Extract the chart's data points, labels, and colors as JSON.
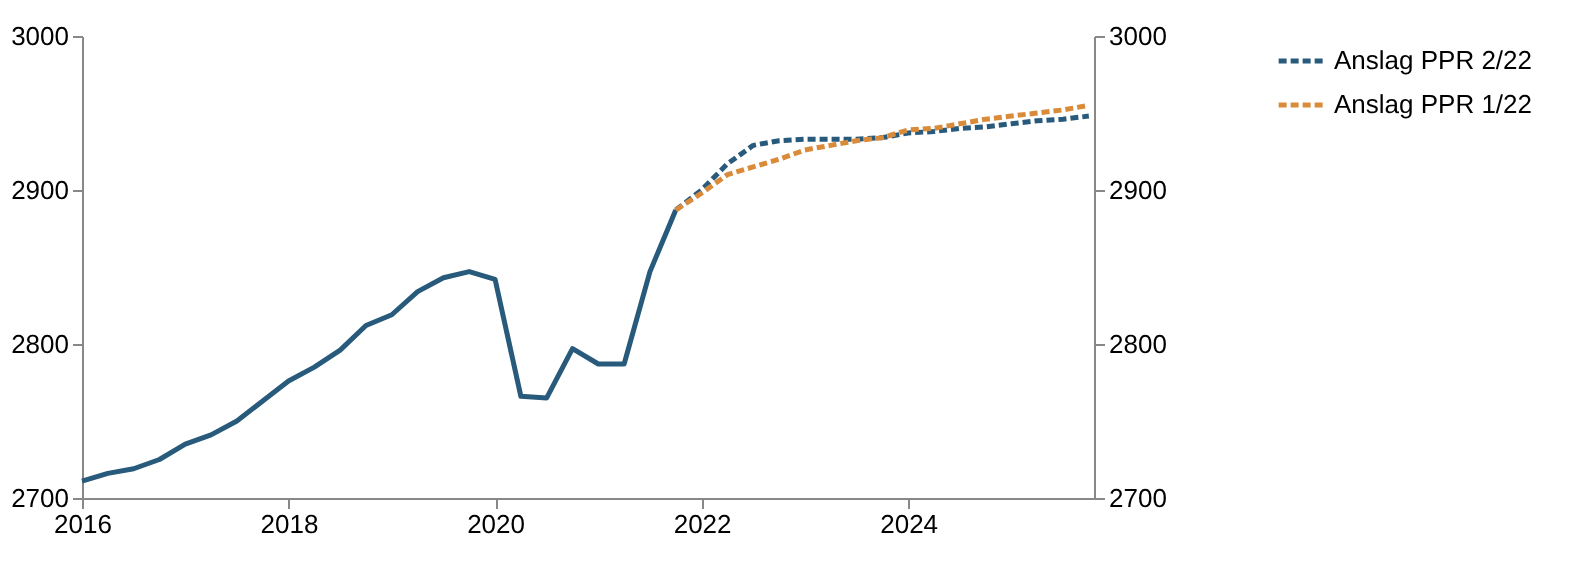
{
  "chart_data": {
    "type": "line",
    "xlim": [
      2016,
      2025.8
    ],
    "xticks": [
      2016,
      2018,
      2020,
      2022,
      2024
    ],
    "ylim": [
      2700,
      3000
    ],
    "yticks": [
      2700,
      2800,
      2900,
      3000
    ],
    "y2lim": [
      2700,
      3000
    ],
    "y2ticks": [
      2700,
      2800,
      2900,
      3000
    ],
    "grid": false,
    "legend": "top right",
    "marker": "none",
    "series": [
      {
        "color": "#285a7c",
        "line_style": "solid",
        "x": [
          2016,
          2016.25,
          2016.5,
          2016.75,
          2017,
          2017.25,
          2017.5,
          2017.75,
          2018,
          2018.25,
          2018.5,
          2018.75,
          2019,
          2019.25,
          2019.5,
          2019.75,
          2020,
          2020.25,
          2020.5,
          2020.75,
          2021,
          2021.25,
          2021.5,
          2021.75
        ],
        "values": [
          2711,
          2716,
          2719,
          2725,
          2735,
          2741,
          2750,
          2763,
          2776,
          2785,
          2796,
          2812,
          2819,
          2834,
          2843,
          2847,
          2842,
          2766,
          2765,
          2797,
          2787,
          2787,
          2847,
          2887
        ]
      },
      {
        "name": "Anslag PPR 2/22",
        "color": "#285a7c",
        "line_style": "dashed",
        "x": [
          2021.75,
          2022,
          2022.25,
          2022.5,
          2022.75,
          2023,
          2023.25,
          2023.5,
          2023.75,
          2024,
          2024.25,
          2024.5,
          2024.75,
          2025,
          2025.25,
          2025.5,
          2025.75
        ],
        "values": [
          2887,
          2900,
          2917,
          2929,
          2932,
          2933,
          2933,
          2933,
          2934,
          2937,
          2938,
          2940,
          2941,
          2943,
          2945,
          2946,
          2948
        ]
      },
      {
        "name": "Anslag PPR 1/22",
        "color": "#d98b3a",
        "line_style": "dashed",
        "x": [
          2021.75,
          2022,
          2022.25,
          2022.5,
          2022.75,
          2023,
          2023.25,
          2023.5,
          2023.75,
          2024,
          2024.25,
          2024.5,
          2024.75,
          2025,
          2025.25,
          2025.5,
          2025.75
        ],
        "values": [
          2887,
          2898,
          2910,
          2915,
          2920,
          2926,
          2929,
          2932,
          2934,
          2939,
          2940,
          2943,
          2946,
          2948,
          2950,
          2952,
          2955
        ]
      }
    ]
  }
}
